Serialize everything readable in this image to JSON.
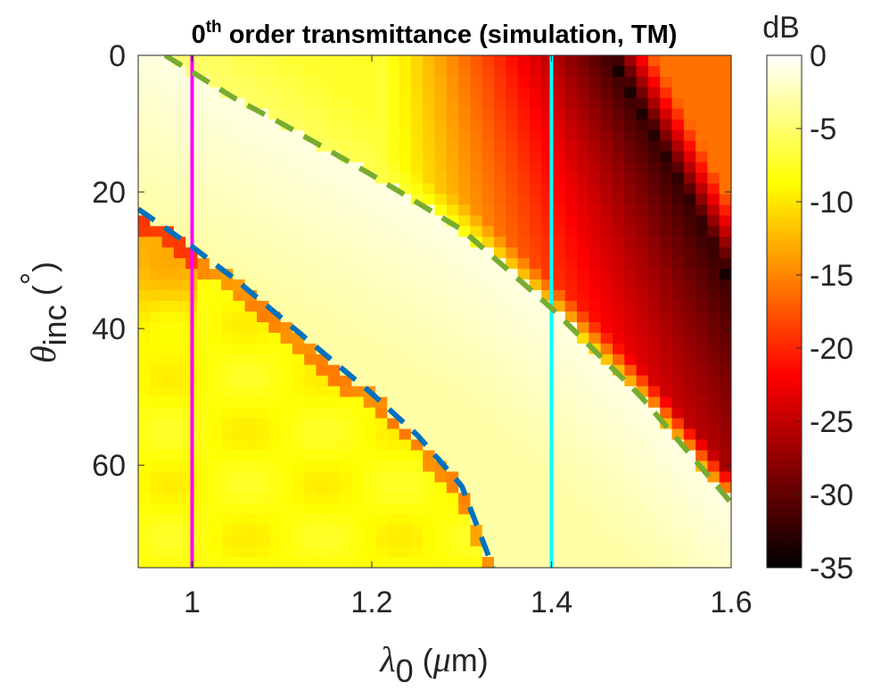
{
  "chart_data": {
    "type": "heatmap",
    "title": {
      "prefix": "0",
      "superscript": "th",
      "rest": " order transmittance (simulation, TM)"
    },
    "xlabel": {
      "symbol": "λ",
      "subscript": "0",
      "open": " (",
      "mu": "μ",
      "unit": "m)"
    },
    "ylabel": {
      "symbol": "θ",
      "subscript": "inc",
      "unit_open": " (",
      "degree": "°",
      "unit_close": ")"
    },
    "xlim": [
      0.94,
      1.6
    ],
    "ylim": [
      0,
      75
    ],
    "y_reversed": true,
    "xticks": [
      1,
      1.2,
      1.4,
      1.6
    ],
    "xtick_labels": [
      "1",
      "1.2",
      "1.4",
      "1.6"
    ],
    "yticks": [
      0,
      20,
      40,
      60
    ],
    "ytick_labels": [
      "0",
      "20",
      "40",
      "60"
    ],
    "grid": {
      "nx": 50,
      "ny": 48
    },
    "colormap": "hot",
    "colorbar": {
      "label": "dB",
      "range": [
        -35,
        0
      ],
      "ticks": [
        0,
        -5,
        -10,
        -15,
        -20,
        -25,
        -30,
        -35
      ],
      "tick_labels": [
        "0",
        "-5",
        "-10",
        "-15",
        "-20",
        "-25",
        "-30",
        "-35"
      ]
    },
    "vertical_lines": [
      {
        "name": "magenta-line",
        "x": 1.0,
        "color": "#ff00ff"
      },
      {
        "name": "cyan-line",
        "x": 1.4,
        "color": "#00ffff"
      }
    ],
    "curves": [
      {
        "name": "blue-dashed-curve",
        "color": "#0072bd",
        "points": [
          [
            0.94,
            22.5
          ],
          [
            1.0,
            28.0
          ],
          [
            1.05,
            33.0
          ],
          [
            1.1,
            38.5
          ],
          [
            1.15,
            44.0
          ],
          [
            1.2,
            49.5
          ],
          [
            1.25,
            55.5
          ],
          [
            1.3,
            63.0
          ],
          [
            1.335,
            75.0
          ]
        ]
      },
      {
        "name": "green-dashed-curve",
        "color": "#77ac30",
        "points": [
          [
            0.97,
            0.0
          ],
          [
            1.05,
            6.5
          ],
          [
            1.1,
            10.0
          ],
          [
            1.2,
            17.5
          ],
          [
            1.3,
            25.5
          ],
          [
            1.4,
            37.0
          ],
          [
            1.5,
            50.0
          ],
          [
            1.6,
            65.5
          ]
        ]
      }
    ]
  }
}
